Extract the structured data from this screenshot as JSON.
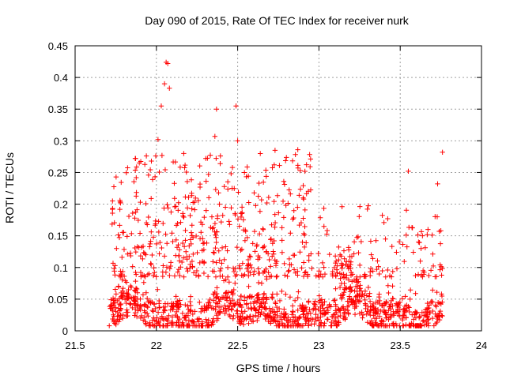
{
  "chart_data": {
    "type": "scatter",
    "title": "Day 090 of 2015, Rate Of TEC Index for receiver nurk",
    "xlabel": "GPS time / hours",
    "ylabel": "ROTI / TECUs",
    "xlim": [
      21.5,
      24
    ],
    "ylim": [
      0,
      0.45
    ],
    "xticks": [
      "21.5",
      "22",
      "22.5",
      "23",
      "23.5",
      "24"
    ],
    "yticks": [
      "0",
      "0.05",
      "0.1",
      "0.15",
      "0.2",
      "0.25",
      "0.3",
      "0.35",
      "0.4",
      "0.45"
    ],
    "grid": true,
    "legend": "none",
    "marker": "plus",
    "color": "#ff0000",
    "x_extent": [
      21.7,
      23.76
    ],
    "notable_points": [
      {
        "x": 22.06,
        "y": 0.424
      },
      {
        "x": 22.07,
        "y": 0.422
      },
      {
        "x": 22.05,
        "y": 0.39
      },
      {
        "x": 22.08,
        "y": 0.383
      },
      {
        "x": 22.03,
        "y": 0.355
      },
      {
        "x": 22.37,
        "y": 0.35
      },
      {
        "x": 22.49,
        "y": 0.355
      },
      {
        "x": 22.01,
        "y": 0.302
      },
      {
        "x": 22.36,
        "y": 0.307
      },
      {
        "x": 22.5,
        "y": 0.3
      },
      {
        "x": 22.87,
        "y": 0.286
      },
      {
        "x": 23.76,
        "y": 0.282
      },
      {
        "x": 22.73,
        "y": 0.285
      },
      {
        "x": 21.87,
        "y": 0.272
      },
      {
        "x": 23.55,
        "y": 0.252
      },
      {
        "x": 23.73,
        "y": 0.232
      },
      {
        "x": 21.73,
        "y": 0.205
      },
      {
        "x": 23.13,
        "y": 0.12
      },
      {
        "x": 23.4,
        "y": 0.171
      }
    ],
    "clusters": [
      {
        "x_range": [
          21.71,
          23.76
        ],
        "y_range": [
          0.008,
          0.085
        ],
        "count": 1050
      },
      {
        "x_range": [
          21.72,
          22.95
        ],
        "y_range": [
          0.085,
          0.28
        ],
        "count": 470
      },
      {
        "x_range": [
          22.9,
          23.76
        ],
        "y_range": [
          0.085,
          0.2
        ],
        "count": 130
      },
      {
        "x_range": [
          23.1,
          23.25
        ],
        "y_range": [
          0.06,
          0.13
        ],
        "count": 40
      }
    ]
  }
}
